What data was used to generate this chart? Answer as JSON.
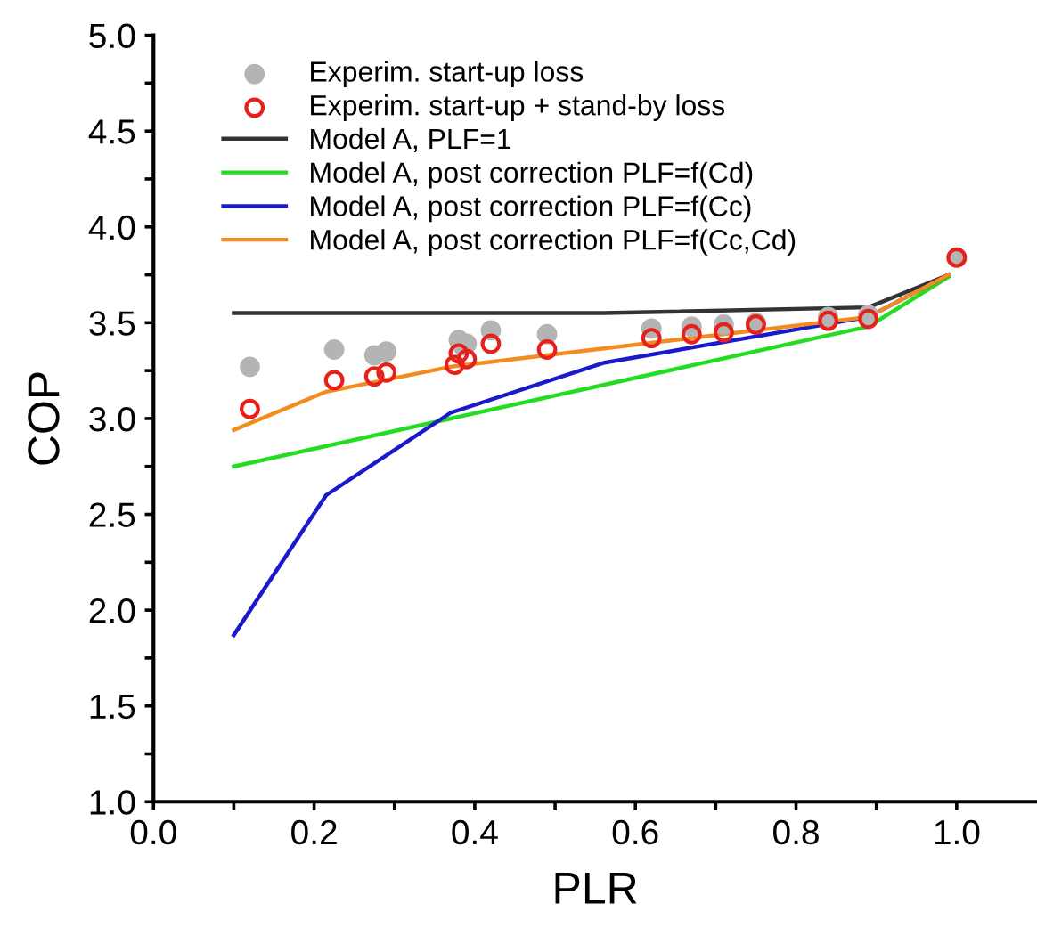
{
  "chart_data": {
    "type": "line",
    "xlabel": "PLR",
    "ylabel": "COP",
    "xlim": [
      0,
      1.1
    ],
    "ylim": [
      1.0,
      5.0
    ],
    "xticks": [
      {
        "value": 0,
        "label": "0.0"
      },
      {
        "value": 0.1,
        "label": null
      },
      {
        "value": 0.2,
        "label": "0.2"
      },
      {
        "value": 0.3,
        "label": null
      },
      {
        "value": 0.4,
        "label": "0.4"
      },
      {
        "value": 0.5,
        "label": null
      },
      {
        "value": 0.6,
        "label": "0.6"
      },
      {
        "value": 0.7,
        "label": null
      },
      {
        "value": 0.8,
        "label": "0.8"
      },
      {
        "value": 0.9,
        "label": null
      },
      {
        "value": 1.0,
        "label": "1.0"
      }
    ],
    "yticks": [
      {
        "value": 1.0,
        "label": "1.0"
      },
      {
        "value": 1.25,
        "label": null
      },
      {
        "value": 1.5,
        "label": "1.5"
      },
      {
        "value": 1.75,
        "label": null
      },
      {
        "value": 2.0,
        "label": "2.0"
      },
      {
        "value": 2.25,
        "label": null
      },
      {
        "value": 2.5,
        "label": "2.5"
      },
      {
        "value": 2.75,
        "label": null
      },
      {
        "value": 3.0,
        "label": "3.0"
      },
      {
        "value": 3.25,
        "label": null
      },
      {
        "value": 3.5,
        "label": "3.5"
      },
      {
        "value": 3.75,
        "label": null
      },
      {
        "value": 4.0,
        "label": "4.0"
      },
      {
        "value": 4.25,
        "label": null
      },
      {
        "value": 4.5,
        "label": "4.5"
      },
      {
        "value": 4.75,
        "label": null
      },
      {
        "value": 5.0,
        "label": "5.0"
      }
    ],
    "grid": false,
    "legend": "top left",
    "line_style": "solid",
    "series": [
      {
        "name": "Experim. start-up loss",
        "type": "scatter",
        "marker": "circle",
        "color": "#b4b4b4",
        "x": [
          0.12,
          0.225,
          0.275,
          0.29,
          0.38,
          0.385,
          0.39,
          0.42,
          0.49,
          0.62,
          0.67,
          0.71,
          0.75,
          0.84,
          0.89,
          1.0
        ],
        "values": [
          3.27,
          3.36,
          3.33,
          3.35,
          3.41,
          3.38,
          3.39,
          3.46,
          3.44,
          3.47,
          3.48,
          3.49,
          3.5,
          3.53,
          3.54,
          3.84
        ]
      },
      {
        "name": "Experim. start-up + stand-by loss",
        "type": "scatter",
        "marker": "circle",
        "color": "#e8201c",
        "x": [
          0.12,
          0.225,
          0.275,
          0.29,
          0.375,
          0.38,
          0.39,
          0.42,
          0.49,
          0.62,
          0.67,
          0.71,
          0.75,
          0.84,
          0.89,
          1.0
        ],
        "values": [
          3.05,
          3.2,
          3.22,
          3.24,
          3.28,
          3.34,
          3.31,
          3.39,
          3.36,
          3.42,
          3.44,
          3.45,
          3.49,
          3.51,
          3.52,
          3.84
        ]
      },
      {
        "name": "Model A, PLF=1",
        "color": "#333333",
        "x": [
          0.1,
          0.56,
          0.89,
          0.99
        ],
        "values": [
          3.55,
          3.55,
          3.58,
          3.75
        ]
      },
      {
        "name": "Model A, post correction PLF=f(Cd)",
        "color": "#22dd22",
        "x": [
          0.1,
          0.89,
          0.99
        ],
        "values": [
          2.75,
          3.48,
          3.74
        ]
      },
      {
        "name": "Model A, post correction PLF=f(Cc)",
        "color": "#1a1acc",
        "x": [
          0.1,
          0.215,
          0.37,
          0.56,
          0.89,
          0.99
        ],
        "values": [
          1.87,
          2.6,
          3.03,
          3.29,
          3.53,
          3.75
        ]
      },
      {
        "name": "Model A, post correction PLF=f(Cc,Cd)",
        "color": "#f28c1e",
        "x": [
          0.1,
          0.215,
          0.37,
          0.89,
          0.99
        ],
        "values": [
          2.94,
          3.14,
          3.27,
          3.53,
          3.75
        ]
      }
    ]
  }
}
